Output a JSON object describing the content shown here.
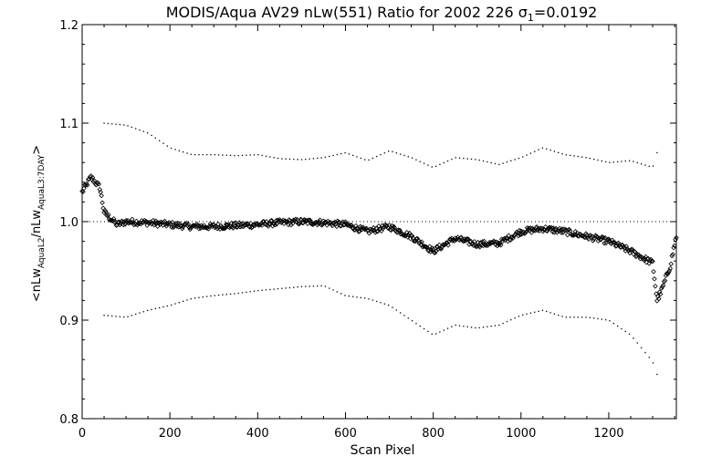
{
  "chart_data": {
    "type": "scatter",
    "title": "MODIS/Aqua AV29 nLw(551) Ratio for 2002 226 σ",
    "title_sub": "1",
    "title_tail": "=0.0192",
    "xlabel": "Scan Pixel",
    "ylabel_parts": {
      "open": "<nLw",
      "sub1": "AquaL2",
      "mid": "/nLw",
      "sub2": "AquaL3:7DAY",
      "close": ">"
    },
    "xlim": [
      0,
      1354
    ],
    "ylim": [
      0.8,
      1.2
    ],
    "xticks": [
      0,
      200,
      400,
      600,
      800,
      1000,
      1200
    ],
    "yticks": [
      0.8,
      0.9,
      1.0,
      1.1,
      1.2
    ],
    "ytick_labels": [
      "0.8",
      "0.9",
      "1.0",
      "1.1",
      "1.2"
    ],
    "reference_line": 1.0,
    "grid": false,
    "series": [
      {
        "role": "ratio",
        "marker": "diamond",
        "x": [
          0,
          20,
          40,
          50,
          60,
          80,
          100,
          150,
          200,
          250,
          300,
          350,
          400,
          450,
          500,
          550,
          600,
          650,
          700,
          750,
          800,
          850,
          900,
          950,
          1000,
          1050,
          1100,
          1150,
          1200,
          1250,
          1300,
          1310,
          1320,
          1340,
          1354
        ],
        "y": [
          1.03,
          1.045,
          1.035,
          1.01,
          1.005,
          0.997,
          1.0,
          0.999,
          0.997,
          0.995,
          0.995,
          0.996,
          0.997,
          0.999,
          1.0,
          0.999,
          0.997,
          0.99,
          0.995,
          0.985,
          0.97,
          0.983,
          0.977,
          0.978,
          0.99,
          0.993,
          0.99,
          0.985,
          0.98,
          0.97,
          0.958,
          0.92,
          0.93,
          0.955,
          0.985
        ]
      },
      {
        "role": "upper-bound",
        "marker": "dot",
        "x": [
          50,
          100,
          150,
          200,
          250,
          300,
          350,
          400,
          450,
          500,
          550,
          600,
          650,
          700,
          750,
          800,
          850,
          900,
          950,
          1000,
          1050,
          1100,
          1150,
          1200,
          1250,
          1300,
          1310
        ],
        "y": [
          1.1,
          1.098,
          1.09,
          1.075,
          1.068,
          1.068,
          1.067,
          1.068,
          1.064,
          1.063,
          1.065,
          1.07,
          1.062,
          1.072,
          1.065,
          1.055,
          1.065,
          1.063,
          1.058,
          1.065,
          1.075,
          1.068,
          1.065,
          1.06,
          1.062,
          1.055,
          1.07
        ]
      },
      {
        "role": "lower-bound",
        "marker": "dot",
        "x": [
          50,
          100,
          150,
          200,
          250,
          300,
          350,
          400,
          450,
          500,
          550,
          600,
          650,
          700,
          750,
          800,
          850,
          900,
          950,
          1000,
          1050,
          1100,
          1150,
          1200,
          1250,
          1300,
          1310
        ],
        "y": [
          0.905,
          0.903,
          0.91,
          0.915,
          0.922,
          0.925,
          0.927,
          0.93,
          0.932,
          0.934,
          0.935,
          0.925,
          0.922,
          0.915,
          0.9,
          0.885,
          0.895,
          0.892,
          0.895,
          0.905,
          0.91,
          0.903,
          0.903,
          0.9,
          0.885,
          0.858,
          0.845
        ]
      }
    ]
  }
}
